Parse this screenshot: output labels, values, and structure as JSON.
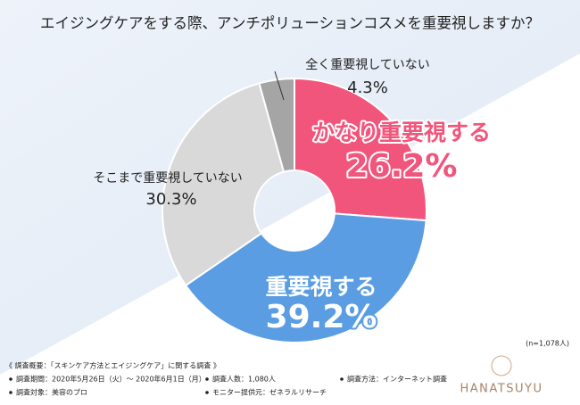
{
  "chart_data": {
    "type": "pie",
    "title": "エイジングケアをする際、アンチポリューションコスメを重要視しますか？",
    "categories": [
      "かなり重要視する",
      "重要視する",
      "そこまで重要視していない",
      "全く重要視していない"
    ],
    "values": [
      26.2,
      39.2,
      30.3,
      4.3
    ],
    "value_labels": [
      "26.2%",
      "39.2%",
      "30.3%",
      "4.3%"
    ],
    "colors": [
      "#f2557b",
      "#5a9de2",
      "#d9d9d9",
      "#a5a5a5"
    ],
    "donut": true
  },
  "sample_note": "(n=1,078人)",
  "survey": {
    "heading": "《 調査概要：「スキンケア方法とエイジングケア」に関する調査 》",
    "items": [
      "調査期間：2020年5月26日（火）～ 2020年6月1日（月）",
      "調査人数：1,080人",
      "調査方法：インターネット調査",
      "調査対象：美容のプロ",
      "モニター提供元：ゼネラルリサーチ"
    ]
  },
  "brand": "HANATSUYU"
}
